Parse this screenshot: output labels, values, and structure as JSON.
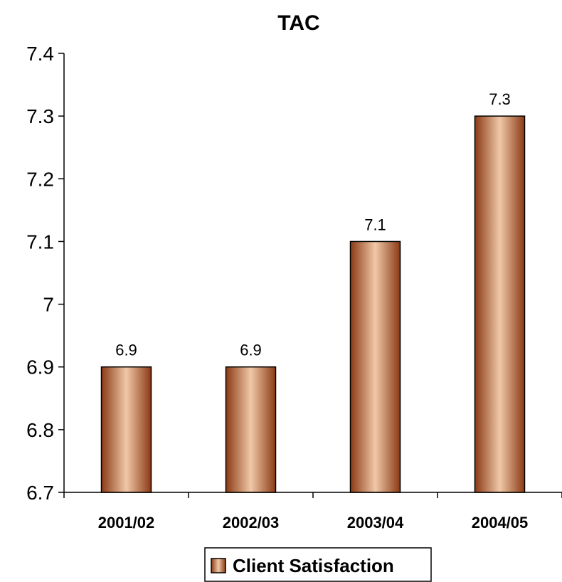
{
  "chart_data": {
    "type": "bar",
    "title": "TAC",
    "categories": [
      "2001/02",
      "2002/03",
      "2003/04",
      "2004/05"
    ],
    "series": [
      {
        "name": "Client Satisfaction",
        "values": [
          6.9,
          6.9,
          7.1,
          7.3
        ]
      }
    ],
    "data_labels": [
      "6.9",
      "6.9",
      "7.1",
      "7.3"
    ],
    "ylim": [
      6.7,
      7.4
    ],
    "yticks": [
      6.7,
      6.8,
      6.9,
      7.0,
      7.1,
      7.2,
      7.3,
      7.4
    ],
    "ytick_labels": [
      "6.7",
      "6.8",
      "6.9",
      "7",
      "7.1",
      "7.2",
      "7.3",
      "7.4"
    ],
    "xlabel": "",
    "ylabel": "",
    "grid": false,
    "legend_position": "bottom",
    "colors": {
      "bar_dark": "#8b3a14",
      "bar_mid": "#c87e50",
      "bar_light": "#f0c8a8"
    }
  }
}
